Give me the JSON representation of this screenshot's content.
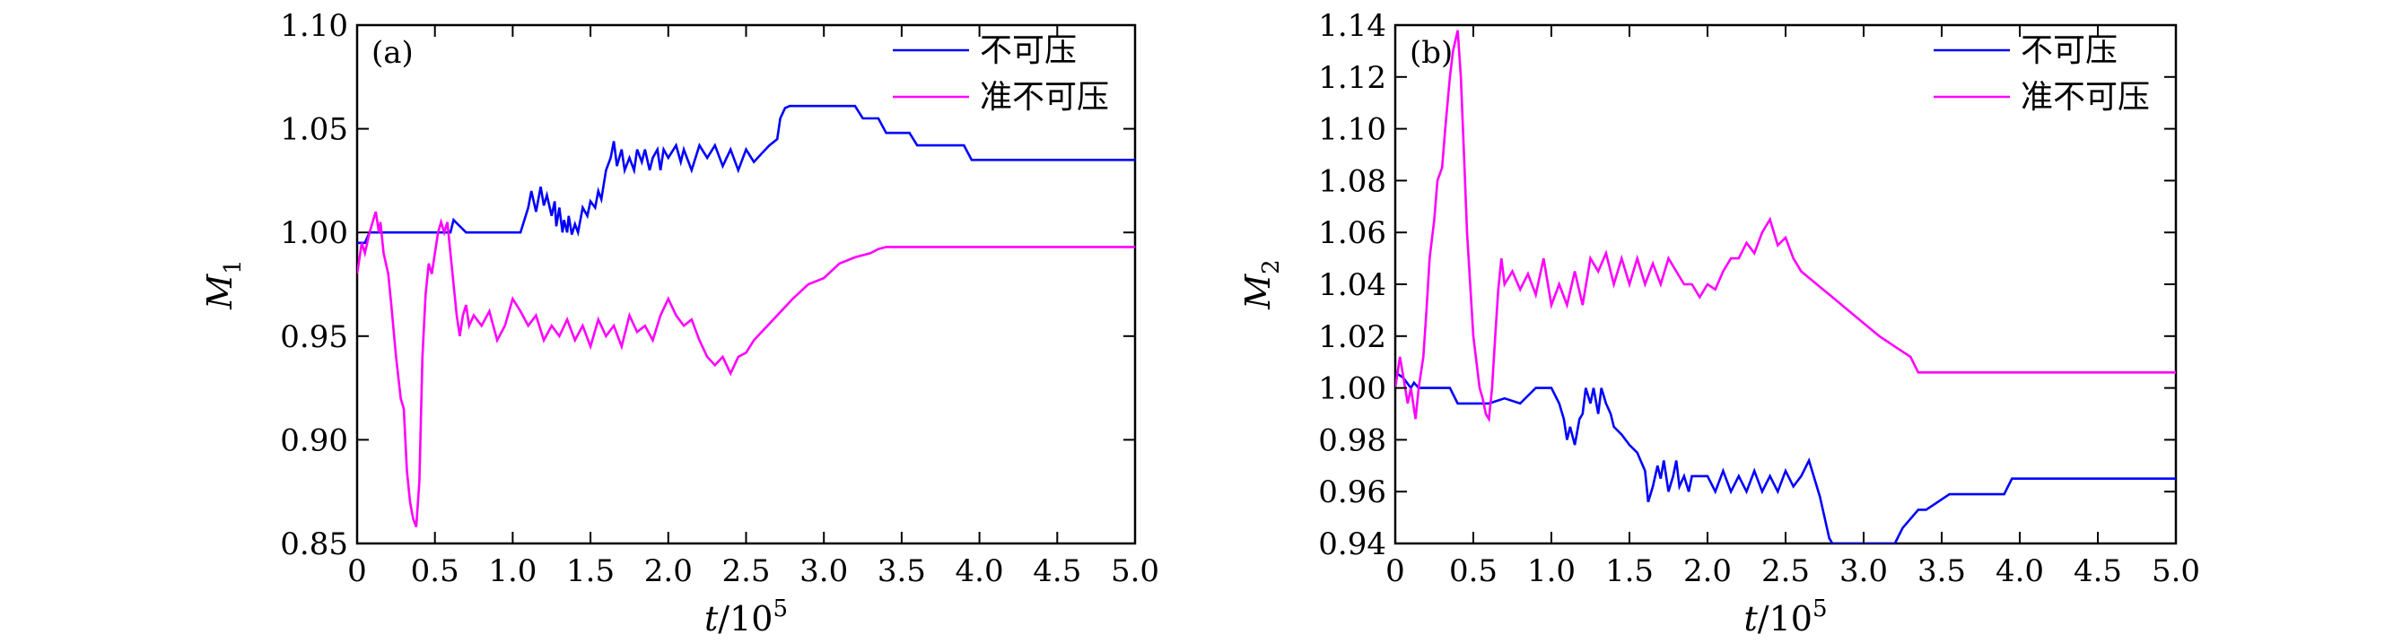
{
  "figure": {
    "panels": [
      {
        "panel_label": "(a)",
        "xlabel_var": "t",
        "xlabel_unit": "/10",
        "xlabel_exp": "5",
        "ylabel_var": "M",
        "ylabel_sub": "1"
      },
      {
        "panel_label": "(b)",
        "xlabel_var": "t",
        "xlabel_unit": "/10",
        "xlabel_exp": "5",
        "ylabel_var": "M",
        "ylabel_sub": "2"
      }
    ]
  },
  "chart_data": [
    {
      "type": "line",
      "title": "",
      "panel_label": "(a)",
      "xlabel": "t/10^5",
      "ylabel": "M_1",
      "xlim": [
        0,
        5.0
      ],
      "ylim": [
        0.85,
        1.1
      ],
      "xticks": [
        "0",
        "0.5",
        "1.0",
        "1.5",
        "2.0",
        "2.5",
        "3.0",
        "3.5",
        "4.0",
        "4.5",
        "5.0"
      ],
      "xtick_values": [
        0,
        0.5,
        1.0,
        1.5,
        2.0,
        2.5,
        3.0,
        3.5,
        4.0,
        4.5,
        5.0
      ],
      "yticks": [
        "0.85",
        "0.90",
        "0.95",
        "1.00",
        "1.05",
        "1.10"
      ],
      "ytick_values": [
        0.85,
        0.9,
        0.95,
        1.0,
        1.05,
        1.1
      ],
      "grid": false,
      "legend_position": "top-right",
      "series": [
        {
          "name": "不可压",
          "color": "#0000ff",
          "x": [
            0,
            0.05,
            0.08,
            0.1,
            0.6,
            0.62,
            0.7,
            1.05,
            1.1,
            1.12,
            1.15,
            1.18,
            1.2,
            1.22,
            1.25,
            1.27,
            1.28,
            1.3,
            1.32,
            1.33,
            1.35,
            1.36,
            1.38,
            1.4,
            1.42,
            1.45,
            1.48,
            1.5,
            1.53,
            1.55,
            1.57,
            1.6,
            1.63,
            1.65,
            1.67,
            1.7,
            1.72,
            1.75,
            1.78,
            1.8,
            1.83,
            1.85,
            1.88,
            1.9,
            1.93,
            1.95,
            1.97,
            2.0,
            2.05,
            2.08,
            2.1,
            2.15,
            2.2,
            2.25,
            2.3,
            2.35,
            2.4,
            2.45,
            2.5,
            2.55,
            2.6,
            2.65,
            2.7,
            2.72,
            2.75,
            2.78,
            2.8,
            3.2,
            3.25,
            3.35,
            3.4,
            3.55,
            3.6,
            3.9,
            3.95,
            5.0
          ],
          "values": [
            0.995,
            0.995,
            1.0,
            1.0,
            1.0,
            1.006,
            1.0,
            1.0,
            1.012,
            1.02,
            1.01,
            1.022,
            1.013,
            1.018,
            1.008,
            1.015,
            1.003,
            1.012,
            1.0,
            1.006,
            1.0,
            1.008,
            0.999,
            1.004,
            1.0,
            1.012,
            1.008,
            1.015,
            1.012,
            1.02,
            1.016,
            1.03,
            1.036,
            1.044,
            1.032,
            1.04,
            1.03,
            1.036,
            1.03,
            1.04,
            1.034,
            1.04,
            1.03,
            1.036,
            1.04,
            1.03,
            1.04,
            1.036,
            1.042,
            1.034,
            1.04,
            1.03,
            1.042,
            1.036,
            1.042,
            1.032,
            1.04,
            1.03,
            1.04,
            1.034,
            1.038,
            1.042,
            1.045,
            1.055,
            1.06,
            1.061,
            1.061,
            1.061,
            1.055,
            1.055,
            1.048,
            1.048,
            1.042,
            1.042,
            1.035,
            1.035
          ]
        },
        {
          "name": "准不可压",
          "color": "#ff00ff",
          "x": [
            0,
            0.03,
            0.05,
            0.08,
            0.1,
            0.12,
            0.14,
            0.15,
            0.17,
            0.2,
            0.22,
            0.25,
            0.28,
            0.3,
            0.32,
            0.34,
            0.36,
            0.38,
            0.4,
            0.42,
            0.44,
            0.46,
            0.48,
            0.5,
            0.52,
            0.54,
            0.56,
            0.58,
            0.6,
            0.62,
            0.64,
            0.66,
            0.68,
            0.7,
            0.72,
            0.75,
            0.8,
            0.85,
            0.9,
            0.95,
            1.0,
            1.05,
            1.1,
            1.15,
            1.2,
            1.25,
            1.3,
            1.35,
            1.4,
            1.45,
            1.5,
            1.55,
            1.6,
            1.65,
            1.7,
            1.75,
            1.8,
            1.85,
            1.9,
            1.95,
            2.0,
            2.05,
            2.1,
            2.15,
            2.2,
            2.25,
            2.3,
            2.35,
            2.4,
            2.45,
            2.5,
            2.55,
            2.6,
            2.7,
            2.8,
            2.9,
            3.0,
            3.1,
            3.2,
            3.3,
            3.35,
            3.4,
            5.0
          ],
          "values": [
            0.98,
            0.995,
            0.99,
            1.0,
            1.005,
            1.01,
            1.0,
            1.005,
            0.99,
            0.98,
            0.965,
            0.94,
            0.92,
            0.915,
            0.885,
            0.87,
            0.862,
            0.858,
            0.88,
            0.94,
            0.97,
            0.985,
            0.98,
            0.99,
            1.0,
            1.005,
            1.0,
            1.005,
            0.99,
            0.975,
            0.96,
            0.95,
            0.96,
            0.965,
            0.955,
            0.96,
            0.955,
            0.962,
            0.948,
            0.955,
            0.968,
            0.962,
            0.955,
            0.96,
            0.948,
            0.955,
            0.95,
            0.958,
            0.948,
            0.955,
            0.945,
            0.958,
            0.95,
            0.955,
            0.945,
            0.96,
            0.952,
            0.955,
            0.948,
            0.96,
            0.968,
            0.96,
            0.955,
            0.958,
            0.948,
            0.94,
            0.936,
            0.94,
            0.932,
            0.94,
            0.942,
            0.948,
            0.952,
            0.96,
            0.968,
            0.975,
            0.978,
            0.985,
            0.988,
            0.99,
            0.992,
            0.993,
            0.993
          ]
        }
      ]
    },
    {
      "type": "line",
      "title": "",
      "panel_label": "(b)",
      "xlabel": "t/10^5",
      "ylabel": "M_2",
      "xlim": [
        0,
        5.0
      ],
      "ylim": [
        0.94,
        1.14
      ],
      "xticks": [
        "0",
        "0.5",
        "1.0",
        "1.5",
        "2.0",
        "2.5",
        "3.0",
        "3.5",
        "4.0",
        "4.5",
        "5.0"
      ],
      "xtick_values": [
        0,
        0.5,
        1.0,
        1.5,
        2.0,
        2.5,
        3.0,
        3.5,
        4.0,
        4.5,
        5.0
      ],
      "yticks": [
        "0.94",
        "0.96",
        "0.98",
        "1.00",
        "1.02",
        "1.04",
        "1.06",
        "1.08",
        "1.10",
        "1.12",
        "1.14"
      ],
      "ytick_values": [
        0.94,
        0.96,
        0.98,
        1.0,
        1.02,
        1.04,
        1.06,
        1.08,
        1.1,
        1.12,
        1.14
      ],
      "grid": false,
      "legend_position": "top-right",
      "series": [
        {
          "name": "不可压",
          "color": "#0000ff",
          "x": [
            0,
            0.05,
            0.1,
            0.12,
            0.15,
            0.18,
            0.2,
            0.25,
            0.3,
            0.35,
            0.4,
            0.5,
            0.6,
            0.7,
            0.8,
            0.9,
            1.0,
            1.05,
            1.08,
            1.1,
            1.12,
            1.15,
            1.18,
            1.2,
            1.22,
            1.25,
            1.27,
            1.3,
            1.32,
            1.35,
            1.38,
            1.4,
            1.45,
            1.5,
            1.55,
            1.6,
            1.62,
            1.65,
            1.68,
            1.7,
            1.72,
            1.75,
            1.78,
            1.8,
            1.82,
            1.85,
            1.88,
            1.9,
            2.0,
            2.05,
            2.1,
            2.15,
            2.2,
            2.25,
            2.3,
            2.35,
            2.4,
            2.45,
            2.5,
            2.55,
            2.6,
            2.65,
            2.7,
            2.72,
            2.75,
            2.78,
            2.8,
            3.2,
            3.25,
            3.35,
            3.4,
            3.55,
            3.6,
            3.9,
            3.95,
            5.0
          ],
          "values": [
            1.006,
            1.004,
            1.0,
            1.002,
            1.0,
            1.0,
            1.0,
            1.0,
            1.0,
            1.0,
            0.994,
            0.994,
            0.994,
            0.996,
            0.994,
            1.0,
            1.0,
            0.994,
            0.988,
            0.98,
            0.985,
            0.978,
            0.988,
            0.99,
            1.0,
            0.994,
            1.0,
            0.99,
            1.0,
            0.994,
            0.99,
            0.985,
            0.982,
            0.978,
            0.975,
            0.968,
            0.956,
            0.962,
            0.97,
            0.965,
            0.972,
            0.96,
            0.966,
            0.972,
            0.962,
            0.966,
            0.96,
            0.966,
            0.966,
            0.96,
            0.968,
            0.96,
            0.966,
            0.96,
            0.968,
            0.96,
            0.966,
            0.96,
            0.968,
            0.962,
            0.966,
            0.972,
            0.962,
            0.958,
            0.95,
            0.942,
            0.94,
            0.94,
            0.946,
            0.953,
            0.953,
            0.959,
            0.959,
            0.959,
            0.965,
            0.965
          ]
        },
        {
          "name": "准不可压",
          "color": "#ff00ff",
          "x": [
            0,
            0.03,
            0.05,
            0.08,
            0.1,
            0.13,
            0.15,
            0.18,
            0.2,
            0.22,
            0.25,
            0.27,
            0.3,
            0.32,
            0.35,
            0.37,
            0.4,
            0.42,
            0.44,
            0.46,
            0.48,
            0.5,
            0.52,
            0.54,
            0.56,
            0.58,
            0.6,
            0.62,
            0.64,
            0.66,
            0.68,
            0.7,
            0.75,
            0.8,
            0.85,
            0.9,
            0.95,
            1.0,
            1.05,
            1.1,
            1.15,
            1.2,
            1.25,
            1.3,
            1.35,
            1.4,
            1.45,
            1.5,
            1.55,
            1.6,
            1.65,
            1.7,
            1.75,
            1.8,
            1.85,
            1.9,
            1.95,
            2.0,
            2.05,
            2.1,
            2.15,
            2.2,
            2.25,
            2.3,
            2.35,
            2.4,
            2.45,
            2.5,
            2.55,
            2.6,
            2.7,
            2.8,
            2.9,
            3.0,
            3.1,
            3.2,
            3.3,
            3.35,
            3.4,
            5.0
          ],
          "values": [
            1.0,
            1.012,
            1.005,
            0.994,
            1.0,
            0.988,
            1.0,
            1.012,
            1.03,
            1.05,
            1.065,
            1.08,
            1.085,
            1.1,
            1.12,
            1.13,
            1.138,
            1.12,
            1.09,
            1.06,
            1.04,
            1.02,
            1.01,
            1.0,
            0.996,
            0.99,
            0.988,
            1.0,
            1.02,
            1.038,
            1.05,
            1.04,
            1.045,
            1.038,
            1.044,
            1.036,
            1.05,
            1.032,
            1.04,
            1.032,
            1.045,
            1.032,
            1.05,
            1.045,
            1.052,
            1.04,
            1.05,
            1.04,
            1.05,
            1.04,
            1.048,
            1.04,
            1.05,
            1.045,
            1.04,
            1.04,
            1.035,
            1.04,
            1.038,
            1.045,
            1.05,
            1.05,
            1.056,
            1.052,
            1.06,
            1.065,
            1.055,
            1.058,
            1.05,
            1.045,
            1.04,
            1.035,
            1.03,
            1.025,
            1.02,
            1.016,
            1.012,
            1.006,
            1.006,
            1.006
          ]
        }
      ]
    }
  ]
}
